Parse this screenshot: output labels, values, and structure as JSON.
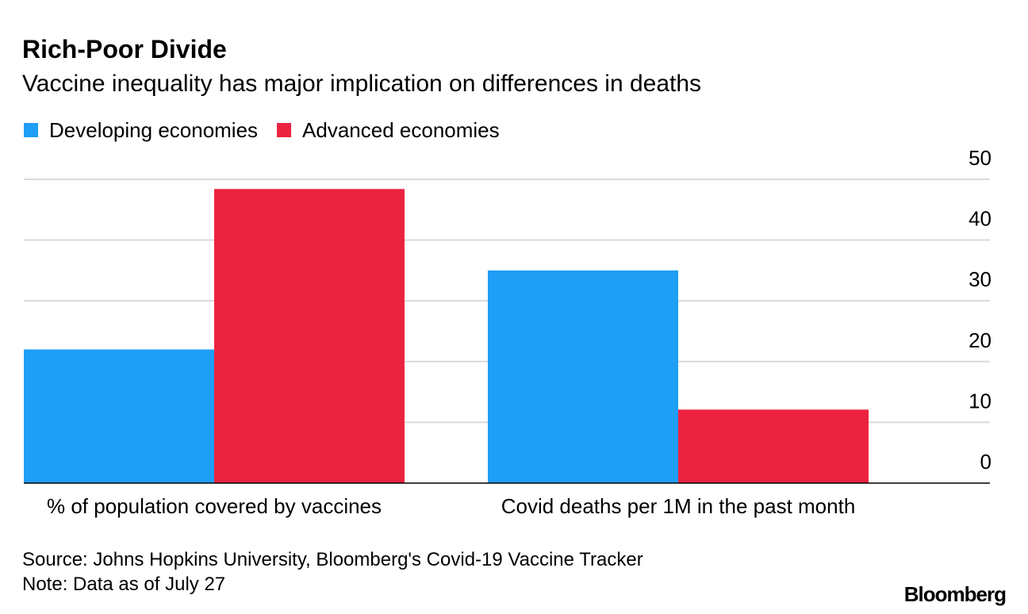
{
  "chart_data": {
    "type": "bar",
    "title": "Rich-Poor Divide",
    "subtitle": "Vaccine inequality has major implication on differences in deaths",
    "categories": [
      "% of population covered by vaccines",
      "Covid deaths per 1M in the past month"
    ],
    "series": [
      {
        "name": "Developing economies",
        "color": "#1f9ef5",
        "values": [
          22,
          35
        ]
      },
      {
        "name": "Advanced economies",
        "color": "#ec2340",
        "values": [
          48.4,
          12.1
        ]
      }
    ],
    "ylim": [
      0,
      50
    ],
    "yticks": [
      0,
      10,
      20,
      30,
      40,
      50
    ],
    "grid": true,
    "y_axis_side": "right",
    "source": "Source: Johns Hopkins University, Bloomberg's Covid-19 Vaccine Tracker",
    "note": "Note: Data as of July 27",
    "brand": "Bloomberg"
  }
}
